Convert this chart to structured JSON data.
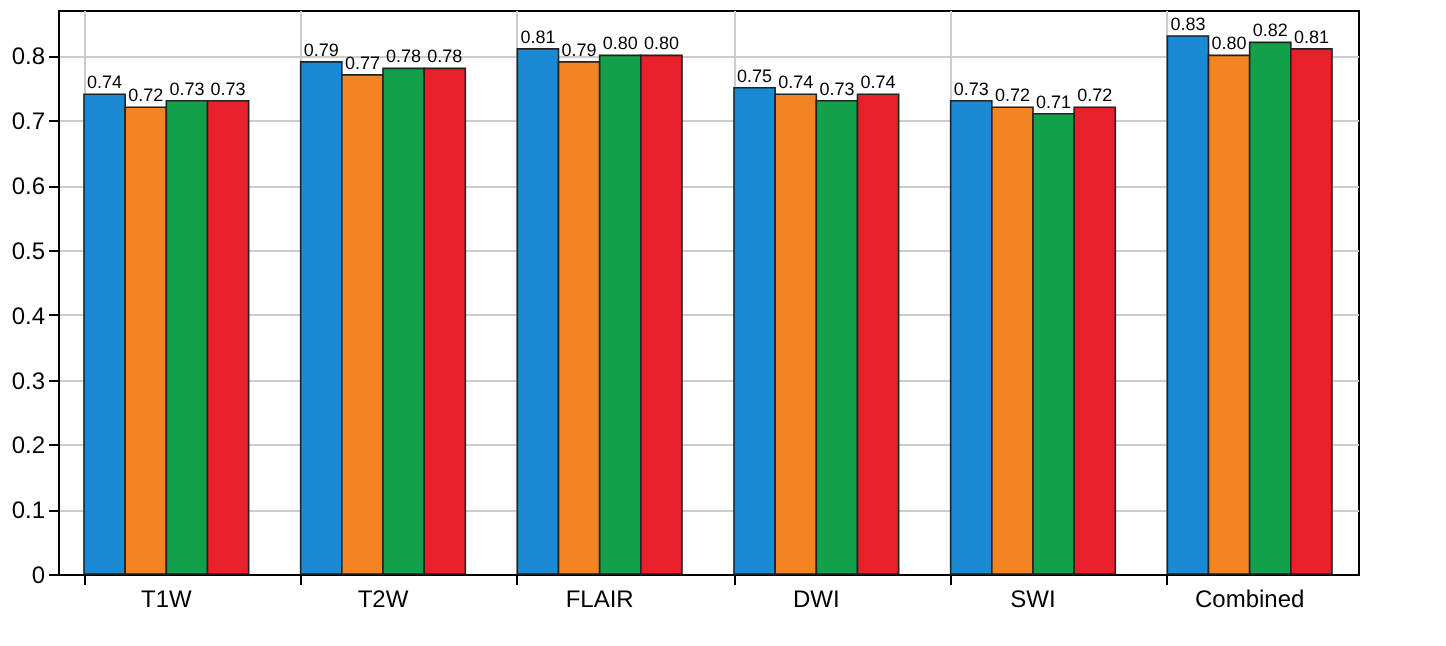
{
  "chart_data": {
    "type": "bar",
    "categories": [
      "T1W",
      "T2W",
      "FLAIR",
      "DWI",
      "SWI",
      "Combined"
    ],
    "series": [
      {
        "color": "#1a8ad4",
        "values": [
          0.74,
          0.79,
          0.81,
          0.75,
          0.73,
          0.83
        ]
      },
      {
        "color": "#f28424",
        "values": [
          0.72,
          0.77,
          0.79,
          0.74,
          0.72,
          0.8
        ]
      },
      {
        "color": "#13a04a",
        "values": [
          0.73,
          0.78,
          0.8,
          0.73,
          0.71,
          0.82
        ]
      },
      {
        "color": "#e8202a",
        "values": [
          0.73,
          0.78,
          0.8,
          0.74,
          0.72,
          0.81
        ]
      }
    ],
    "ylim": [
      0,
      0.87
    ],
    "yticks": [
      0,
      0.1,
      0.2,
      0.3,
      0.4,
      0.5,
      0.6,
      0.7,
      0.8
    ],
    "value_labels": [
      [
        "0.74",
        "0.79",
        "0.81",
        "0.75",
        "0.73",
        "0.83"
      ],
      [
        "0.72",
        "0.77",
        "0.79",
        "0.74",
        "0.72",
        "0.80"
      ],
      [
        "0.73",
        "0.78",
        "0.80",
        "0.73",
        "0.71",
        "0.82"
      ],
      [
        "0.73",
        "0.78",
        "0.80",
        "0.74",
        "0.72",
        "0.81"
      ]
    ],
    "grid": true,
    "legend": false
  }
}
